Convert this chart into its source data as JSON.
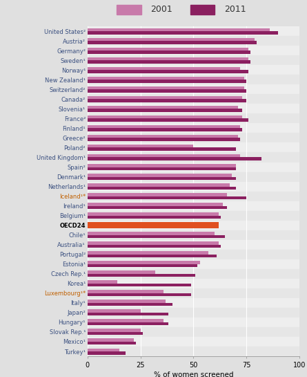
{
  "countries": [
    "United States²",
    "Austria²",
    "Germany²",
    "Sweden¹",
    "Norway¹",
    "New Zealand¹",
    "Switzerland²",
    "Canada²",
    "Slovenia¹",
    "France²",
    "Finland¹",
    "Greece²",
    "Poland²",
    "United Kingdom¹",
    "Spain²",
    "Denmark¹",
    "Netherlands¹",
    "Iceland¹*",
    "Ireland¹",
    "Belgium¹",
    "OECD24",
    "Chile¹",
    "Australia¹",
    "Portugal²",
    "Estonia¹",
    "Czech Rep.¹",
    "Korea¹",
    "Luxembourg¹*",
    "Italy¹",
    "Japan²",
    "Hungary¹",
    "Slovak Rep.¹",
    "Mexico¹",
    "Turkey¹"
  ],
  "val_2001": [
    86,
    79,
    76,
    76,
    72,
    74,
    74,
    73,
    71,
    73,
    72,
    71,
    50,
    72,
    70,
    68,
    67,
    66,
    64,
    62,
    62,
    60,
    62,
    57,
    53,
    32,
    14,
    36,
    37,
    25,
    36,
    25,
    22,
    15
  ],
  "val_2011": [
    90,
    80,
    77,
    77,
    76,
    75,
    75,
    75,
    73,
    76,
    73,
    72,
    70,
    82,
    70,
    70,
    70,
    75,
    66,
    63,
    62,
    65,
    63,
    61,
    52,
    51,
    49,
    49,
    40,
    38,
    38,
    26,
    23,
    18
  ],
  "oecd_index": 20,
  "color_2001": "#c87aaa",
  "color_2011": "#8b2060",
  "color_oecd_2001": "#e05020",
  "color_oecd_2011": "#e05020",
  "highlight_countries": [
    "Iceland¹*",
    "Luxembourg¹*"
  ],
  "highlight_color": "#c06000",
  "normal_color": "#3b5080",
  "oecd_label_color": "#000000",
  "xlabel": "% of women screened",
  "xlim": [
    0,
    100
  ],
  "xticks": [
    0,
    25,
    50,
    75,
    100
  ],
  "bar_height": 0.32,
  "bg_color": "#e0e0e0",
  "plot_bg_even": "#eeeeee",
  "plot_bg_odd": "#e6e6e6",
  "legend_bg": "#d0d0d0",
  "legend_fontsize": 9,
  "label_fontsize": 6.0,
  "xlabel_fontsize": 7.5
}
